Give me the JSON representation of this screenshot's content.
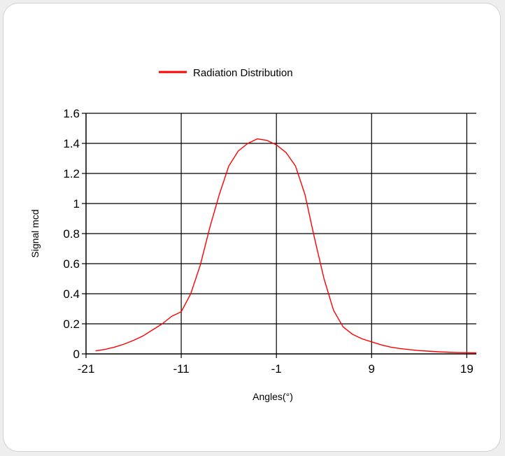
{
  "chart_data": {
    "type": "line",
    "title": "",
    "xlabel": "Angles(°)",
    "ylabel": "Signal mcd",
    "xlim": [
      -21,
      20
    ],
    "ylim": [
      0,
      1.6
    ],
    "xticks": [
      -21,
      -11,
      -1,
      9,
      19
    ],
    "xtick_labels": [
      "-21",
      "-11",
      "-1",
      "9",
      "19"
    ],
    "yticks": [
      0,
      0.2,
      0.4,
      0.6,
      0.8,
      1,
      1.2,
      1.4,
      1.6
    ],
    "ytick_labels": [
      "0",
      "0.2",
      "0.4",
      "0.6",
      "0.8",
      "1",
      "1.2",
      "1.4",
      "1.6"
    ],
    "grid": true,
    "legend_position": "top",
    "series": [
      {
        "name": "Radiation Distribution",
        "color": "#ff0000",
        "x": [
          -20,
          -19,
          -18,
          -17,
          -16,
          -15,
          -14,
          -13,
          -12,
          -11,
          -10,
          -9,
          -8,
          -7,
          -6,
          -5,
          -4,
          -3,
          -2,
          -1,
          0,
          1,
          2,
          3,
          4,
          5,
          6,
          7,
          8,
          9,
          10,
          11,
          12,
          13,
          14,
          15,
          16,
          17,
          18,
          19,
          20
        ],
        "y": [
          0.02,
          0.03,
          0.045,
          0.065,
          0.09,
          0.12,
          0.16,
          0.2,
          0.25,
          0.28,
          0.4,
          0.59,
          0.84,
          1.06,
          1.25,
          1.35,
          1.4,
          1.43,
          1.42,
          1.39,
          1.34,
          1.25,
          1.06,
          0.77,
          0.5,
          0.29,
          0.18,
          0.13,
          0.1,
          0.08,
          0.06,
          0.045,
          0.035,
          0.028,
          0.022,
          0.018,
          0.014,
          0.011,
          0.009,
          0.008,
          0.007
        ]
      }
    ]
  }
}
